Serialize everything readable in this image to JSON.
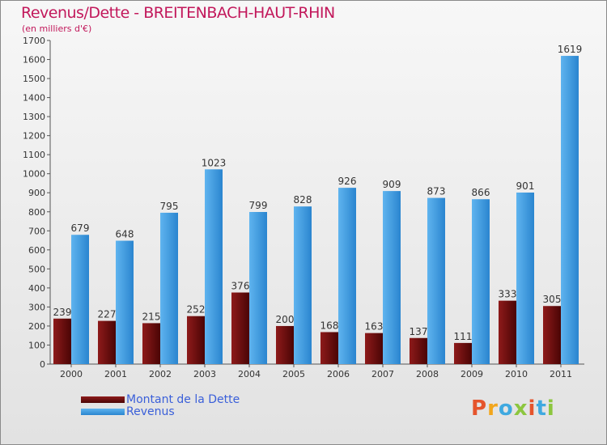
{
  "chart_data": {
    "type": "bar",
    "title": "Revenus/Dette - BREITENBACH-HAUT-RHIN",
    "subtitle": "(en milliers d'€)",
    "categories": [
      "2000",
      "2001",
      "2002",
      "2003",
      "2004",
      "2005",
      "2006",
      "2007",
      "2008",
      "2009",
      "2010",
      "2011"
    ],
    "series": [
      {
        "name": "Montant de la Dette",
        "color": "#7a1010",
        "values": [
          239,
          227,
          215,
          252,
          376,
          200,
          168,
          163,
          137,
          111,
          333,
          305
        ]
      },
      {
        "name": "Revenus",
        "color": "#4ea6e8",
        "values": [
          679,
          648,
          795,
          1023,
          799,
          828,
          926,
          909,
          873,
          866,
          901,
          1619
        ]
      }
    ],
    "ylim": [
      0,
      1700
    ],
    "yticks": [
      0,
      100,
      200,
      300,
      400,
      500,
      600,
      700,
      800,
      900,
      1000,
      1100,
      1200,
      1300,
      1400,
      1500,
      1600,
      1700
    ],
    "grid": false,
    "legend": "bottom-left"
  },
  "logo": {
    "text": "Proxiti",
    "letters": [
      "P",
      "r",
      "o",
      "x",
      "i",
      "t",
      "i"
    ],
    "colors": [
      "#e5542c",
      "#f2a61c",
      "#3fa9e0",
      "#8cc63f",
      "#e5542c",
      "#3fa9e0",
      "#8cc63f"
    ]
  }
}
